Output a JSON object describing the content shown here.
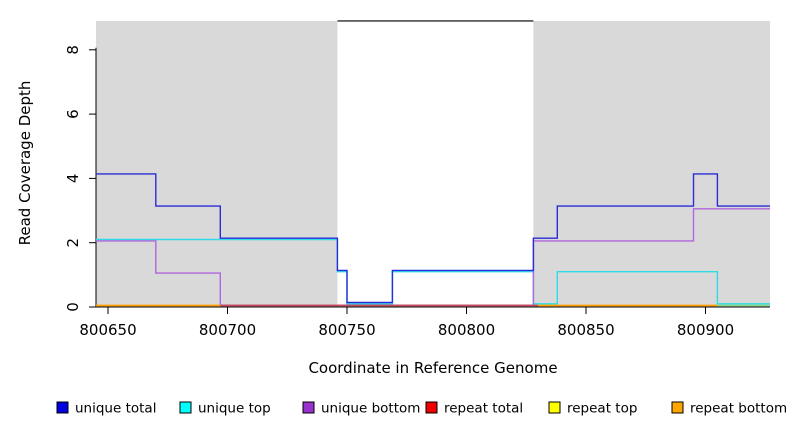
{
  "figure": {
    "xlabel": "Coordinate in Reference Genome",
    "ylabel": "Read Coverage Depth"
  },
  "chart_data": {
    "type": "line",
    "subtype": "step-coverage-plot",
    "title": "",
    "xlabel": "Coordinate in Reference Genome",
    "ylabel": "Read Coverage Depth",
    "xlim": [
      800645,
      800927
    ],
    "ylim": [
      0,
      9
    ],
    "x_ticks": [
      800650,
      800700,
      800750,
      800800,
      800850,
      800900
    ],
    "y_ticks": [
      0,
      2,
      4,
      6,
      8
    ],
    "grid": false,
    "legend_position": "bottom",
    "background_shading": {
      "fill": "#d9d9d9",
      "meaning": "shaded repeat regions; white gap is unique region",
      "regions": [
        [
          800645,
          800746
        ],
        [
          800828,
          800927
        ]
      ]
    },
    "gap_top_line": {
      "x1": 800746,
      "x2": 800828,
      "depth": 8.9,
      "color": "#4d4d4d"
    },
    "series": [
      {
        "name": "unique total",
        "color": "#2b2bd9",
        "legend_color": "#0000e0",
        "draw_path": true,
        "z": 4,
        "steps": [
          [
            800645,
            4
          ],
          [
            800670,
            3
          ],
          [
            800697,
            2
          ],
          [
            800746,
            1
          ],
          [
            800750,
            0
          ],
          [
            800769,
            1
          ],
          [
            800828,
            2
          ],
          [
            800838,
            3
          ],
          [
            800895,
            4
          ],
          [
            800905,
            3
          ],
          [
            800927,
            3
          ]
        ]
      },
      {
        "name": "unique top",
        "color": "#2edce6",
        "legend_color": "#00ffff",
        "draw_path": true,
        "z": 1,
        "steps": [
          [
            800645,
            2
          ],
          [
            800746,
            1
          ],
          [
            800750,
            0
          ],
          [
            800769,
            1
          ],
          [
            800828,
            0
          ],
          [
            800838,
            1
          ],
          [
            800905,
            0
          ],
          [
            800927,
            0
          ]
        ]
      },
      {
        "name": "unique bottom",
        "color": "#b066dc",
        "legend_color": "#9932cc",
        "draw_path": true,
        "z": 2,
        "steps": [
          [
            800645,
            2
          ],
          [
            800670,
            1
          ],
          [
            800697,
            0
          ],
          [
            800828,
            2
          ],
          [
            800895,
            3
          ],
          [
            800927,
            3
          ]
        ]
      },
      {
        "name": "repeat total",
        "color": "#ee0000",
        "legend_color": "#ee0000",
        "draw_path": false,
        "z": 0,
        "steps": [
          [
            800645,
            0
          ],
          [
            800927,
            0
          ]
        ]
      },
      {
        "name": "repeat top",
        "color": "#ffff00",
        "legend_color": "#ffff00",
        "draw_path": false,
        "z": 0,
        "steps": [
          [
            800645,
            0
          ],
          [
            800927,
            0
          ]
        ]
      },
      {
        "name": "repeat bottom",
        "color": "#ffa500",
        "legend_color": "#ffa500",
        "draw_path": false,
        "z": 0,
        "steps": [
          [
            800645,
            0
          ],
          [
            800927,
            0
          ]
        ]
      }
    ],
    "zero_baseline_visible_segments": [
      {
        "x1": 800645,
        "x2": 800697,
        "color": "#ff9f00"
      },
      {
        "x1": 800697,
        "x2": 800830,
        "color": "#c84858"
      },
      {
        "x1": 800830,
        "x2": 800905,
        "color": "#ff9f00"
      },
      {
        "x1": 800905,
        "x2": 800927,
        "color": "#8fd98f"
      }
    ]
  }
}
